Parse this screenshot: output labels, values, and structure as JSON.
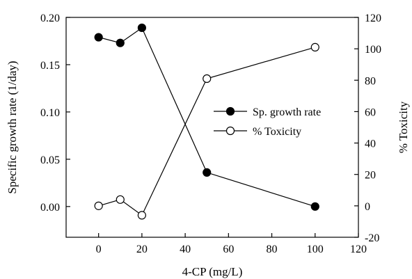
{
  "chart_data": {
    "type": "line",
    "xlabel": "4-CP (mg/L)",
    "ylabel_left": "Specific growth rate (1/day)",
    "ylabel_right": "% Toxicity",
    "xlim": [
      -15,
      120
    ],
    "ylim_left": [
      -0.0325,
      0.2
    ],
    "ylim_right": [
      -20,
      120
    ],
    "x_ticks": [
      "0",
      "20",
      "40",
      "60",
      "80",
      "100",
      "120"
    ],
    "y_left_ticks": [
      "0.00",
      "0.05",
      "0.10",
      "0.15",
      "0.20"
    ],
    "y_right_ticks": [
      "-20",
      "0",
      "20",
      "40",
      "60",
      "80",
      "100",
      "120"
    ],
    "legend_position": "center-right",
    "series": [
      {
        "name": "Sp. growth rate",
        "axis": "left",
        "marker": "filled-circle",
        "x": [
          0,
          10,
          20,
          50,
          100
        ],
        "y": [
          0.179,
          0.173,
          0.189,
          0.036,
          0.0
        ]
      },
      {
        "name": "% Toxicity",
        "axis": "right",
        "marker": "open-circle",
        "x": [
          0,
          10,
          20,
          50,
          100
        ],
        "y": [
          0,
          4,
          -6,
          81,
          101
        ]
      }
    ]
  }
}
